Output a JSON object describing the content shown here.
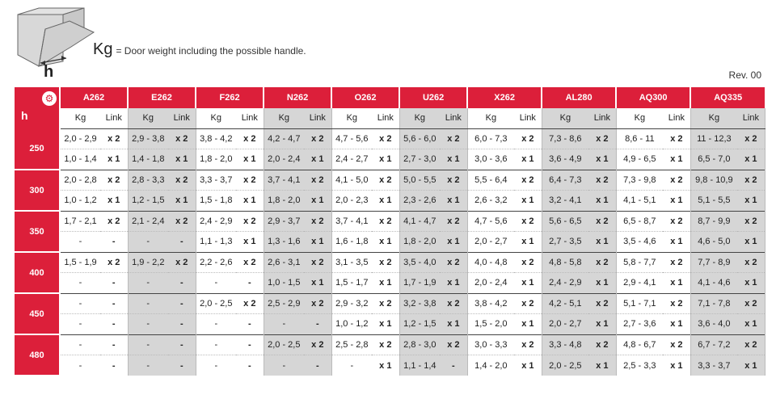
{
  "legend": {
    "kg_symbol": "Kg",
    "text": "= Door weight including the possible handle."
  },
  "diagram": {
    "h_label": "h"
  },
  "revision": "Rev. 00",
  "table": {
    "corner_label": "h",
    "sub_headers": {
      "kg": "Kg",
      "link": "Link"
    },
    "brands": [
      "A262",
      "E262",
      "F262",
      "N262",
      "O262",
      "U262",
      "X262",
      "AL280",
      "AQ300",
      "AQ335"
    ],
    "groups": [
      {
        "h": "250",
        "rows": [
          [
            [
              "2,0 - 2,9",
              "x 2"
            ],
            [
              "2,9 - 3,8",
              "x 2"
            ],
            [
              "3,8 - 4,2",
              "x 2"
            ],
            [
              "4,2 - 4,7",
              "x 2"
            ],
            [
              "4,7 - 5,6",
              "x 2"
            ],
            [
              "5,6 - 6,0",
              "x 2"
            ],
            [
              "6,0 - 7,3",
              "x 2"
            ],
            [
              "7,3 - 8,6",
              "x 2"
            ],
            [
              "8,6 - 11",
              "x 2"
            ],
            [
              "11 - 12,3",
              "x 2"
            ]
          ],
          [
            [
              "1,0 - 1,4",
              "x 1"
            ],
            [
              "1,4 - 1,8",
              "x 1"
            ],
            [
              "1,8 - 2,0",
              "x 1"
            ],
            [
              "2,0 - 2,4",
              "x 1"
            ],
            [
              "2,4 - 2,7",
              "x 1"
            ],
            [
              "2,7 - 3,0",
              "x 1"
            ],
            [
              "3,0 - 3,6",
              "x 1"
            ],
            [
              "3,6 - 4,9",
              "x 1"
            ],
            [
              "4,9 - 6,5",
              "x 1"
            ],
            [
              "6,5 - 7,0",
              "x 1"
            ]
          ]
        ]
      },
      {
        "h": "300",
        "rows": [
          [
            [
              "2,0 - 2,8",
              "x 2"
            ],
            [
              "2,8 - 3,3",
              "x 2"
            ],
            [
              "3,3 - 3,7",
              "x 2"
            ],
            [
              "3,7 - 4,1",
              "x 2"
            ],
            [
              "4,1 - 5,0",
              "x 2"
            ],
            [
              "5,0 - 5,5",
              "x 2"
            ],
            [
              "5,5 - 6,4",
              "x 2"
            ],
            [
              "6,4 - 7,3",
              "x 2"
            ],
            [
              "7,3 - 9,8",
              "x 2"
            ],
            [
              "9,8 - 10,9",
              "x 2"
            ]
          ],
          [
            [
              "1,0 - 1,2",
              "x 1"
            ],
            [
              "1,2 - 1,5",
              "x 1"
            ],
            [
              "1,5 - 1,8",
              "x 1"
            ],
            [
              "1,8 - 2,0",
              "x 1"
            ],
            [
              "2,0 - 2,3",
              "x 1"
            ],
            [
              "2,3 - 2,6",
              "x 1"
            ],
            [
              "2,6 - 3,2",
              "x 1"
            ],
            [
              "3,2 - 4,1",
              "x 1"
            ],
            [
              "4,1 - 5,1",
              "x 1"
            ],
            [
              "5,1 - 5,5",
              "x 1"
            ]
          ]
        ]
      },
      {
        "h": "350",
        "rows": [
          [
            [
              "1,7 - 2,1",
              "x 2"
            ],
            [
              "2,1 - 2,4",
              "x 2"
            ],
            [
              "2,4 - 2,9",
              "x 2"
            ],
            [
              "2,9 - 3,7",
              "x 2"
            ],
            [
              "3,7 - 4,1",
              "x 2"
            ],
            [
              "4,1 - 4,7",
              "x 2"
            ],
            [
              "4,7 - 5,6",
              "x 2"
            ],
            [
              "5,6 - 6,5",
              "x 2"
            ],
            [
              "6,5 - 8,7",
              "x 2"
            ],
            [
              "8,7 - 9,9",
              "x 2"
            ]
          ],
          [
            [
              "-",
              "-"
            ],
            [
              "-",
              "-"
            ],
            [
              "1,1 - 1,3",
              "x 1"
            ],
            [
              "1,3 - 1,6",
              "x 1"
            ],
            [
              "1,6 - 1,8",
              "x 1"
            ],
            [
              "1,8 - 2,0",
              "x 1"
            ],
            [
              "2,0 - 2,7",
              "x 1"
            ],
            [
              "2,7 - 3,5",
              "x 1"
            ],
            [
              "3,5 - 4,6",
              "x 1"
            ],
            [
              "4,6 - 5,0",
              "x 1"
            ]
          ]
        ]
      },
      {
        "h": "400",
        "rows": [
          [
            [
              "1,5 - 1,9",
              "x 2"
            ],
            [
              "1,9 - 2,2",
              "x 2"
            ],
            [
              "2,2 - 2,6",
              "x 2"
            ],
            [
              "2,6 - 3,1",
              "x 2"
            ],
            [
              "3,1 - 3,5",
              "x 2"
            ],
            [
              "3,5 - 4,0",
              "x 2"
            ],
            [
              "4,0 - 4,8",
              "x 2"
            ],
            [
              "4,8 - 5,8",
              "x 2"
            ],
            [
              "5,8 - 7,7",
              "x 2"
            ],
            [
              "7,7 - 8,9",
              "x 2"
            ]
          ],
          [
            [
              "-",
              "-"
            ],
            [
              "-",
              "-"
            ],
            [
              "-",
              "-"
            ],
            [
              "1,0 - 1,5",
              "x 1"
            ],
            [
              "1,5 - 1,7",
              "x 1"
            ],
            [
              "1,7 - 1,9",
              "x 1"
            ],
            [
              "2,0 - 2,4",
              "x 1"
            ],
            [
              "2,4 - 2,9",
              "x 1"
            ],
            [
              "2,9 - 4,1",
              "x 1"
            ],
            [
              "4,1 - 4,6",
              "x 1"
            ]
          ]
        ]
      },
      {
        "h": "450",
        "rows": [
          [
            [
              "-",
              "-"
            ],
            [
              "-",
              "-"
            ],
            [
              "2,0 - 2,5",
              "x 2"
            ],
            [
              "2,5 - 2,9",
              "x 2"
            ],
            [
              "2,9 - 3,2",
              "x 2"
            ],
            [
              "3,2 - 3,8",
              "x 2"
            ],
            [
              "3,8 - 4,2",
              "x 2"
            ],
            [
              "4,2 - 5,1",
              "x 2"
            ],
            [
              "5,1 - 7,1",
              "x 2"
            ],
            [
              "7,1 - 7,8",
              "x 2"
            ]
          ],
          [
            [
              "-",
              "-"
            ],
            [
              "-",
              "-"
            ],
            [
              "-",
              "-"
            ],
            [
              "-",
              "-"
            ],
            [
              "1,0 - 1,2",
              "x 1"
            ],
            [
              "1,2 - 1,5",
              "x 1"
            ],
            [
              "1,5 - 2,0",
              "x 1"
            ],
            [
              "2,0 - 2,7",
              "x 1"
            ],
            [
              "2,7 - 3,6",
              "x 1"
            ],
            [
              "3,6 - 4,0",
              "x 1"
            ]
          ]
        ]
      },
      {
        "h": "480",
        "rows": [
          [
            [
              "-",
              "-"
            ],
            [
              "-",
              "-"
            ],
            [
              "-",
              "-"
            ],
            [
              "2,0 - 2,5",
              "x 2"
            ],
            [
              "2,5 - 2,8",
              "x 2"
            ],
            [
              "2,8 - 3,0",
              "x 2"
            ],
            [
              "3,0 - 3,3",
              "x 2"
            ],
            [
              "3,3 - 4,8",
              "x 2"
            ],
            [
              "4,8 - 6,7",
              "x 2"
            ],
            [
              "6,7 - 7,2",
              "x 2"
            ]
          ],
          [
            [
              "-",
              "-"
            ],
            [
              "-",
              "-"
            ],
            [
              "-",
              "-"
            ],
            [
              "-",
              "-"
            ],
            [
              "-",
              "x 1"
            ],
            [
              "1,1 - 1,4",
              "-"
            ],
            [
              "1,4 - 2,0",
              "x 1"
            ],
            [
              "2,0 - 2,5",
              "x 1"
            ],
            [
              "2,5 - 3,3",
              "x 1"
            ],
            [
              "3,3 - 3,7",
              "x 1"
            ]
          ]
        ]
      }
    ]
  }
}
